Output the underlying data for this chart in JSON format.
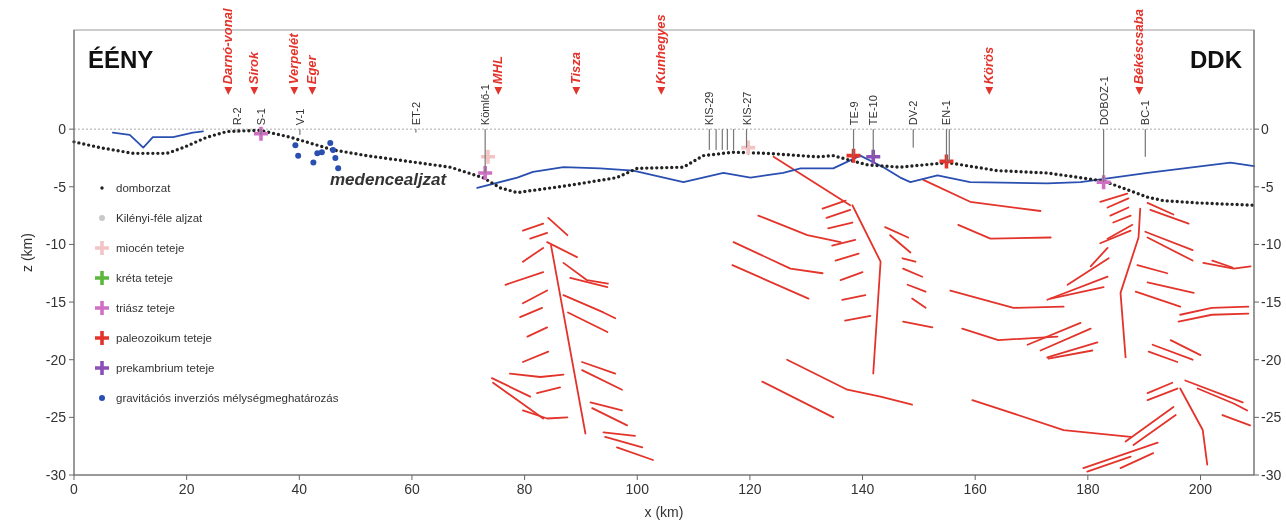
{
  "chart_data": {
    "type": "line",
    "xlabel": "x (km)",
    "ylabel": "z (km)",
    "xlim": [
      0,
      209.5
    ],
    "ylim": [
      -30,
      8.6
    ],
    "xticks": [
      0,
      20,
      40,
      60,
      80,
      100,
      120,
      140,
      160,
      180,
      200
    ],
    "yticks": [
      -30,
      -25,
      -20,
      -15,
      -10,
      -5,
      0
    ],
    "y2lim": [
      -30,
      8.6
    ],
    "y2ticks": [
      -30,
      -25,
      -20,
      -15,
      -10,
      -5,
      0
    ],
    "legend": "left",
    "ref_lines": [
      {
        "axis": "y",
        "value": 0,
        "color": "#aaaaaa",
        "line_style": "dotted"
      }
    ],
    "annotations": [
      "ÉÉNY",
      "DDK",
      "medencealjzat",
      "◄Darnó-vonal",
      "◄Sirok",
      "◄Verpelét",
      "◄Eger",
      "◄MHL",
      "◄Tisza",
      "◄Kunhegyes",
      "◄Körös",
      "◄Békéscsaba"
    ],
    "series": [
      {
        "color": "#e3342b",
        "x": [
          79.7,
          83.3
        ],
        "values": [
          -8.8,
          -8.2
        ]
      },
      {
        "color": "#e3342b",
        "x": [
          84.2,
          87.6
        ],
        "values": [
          -7.7,
          -9.2
        ]
      },
      {
        "color": "#e3342b",
        "x": [
          81.0,
          84.0
        ],
        "values": [
          -9.5,
          -9.0
        ]
      },
      {
        "color": "#e3342b",
        "x": [
          84.0,
          89.3
        ],
        "values": [
          -9.8,
          -11.1
        ]
      },
      {
        "color": "#e3342b",
        "x": [
          79.7,
          83.3
        ],
        "values": [
          -11.5,
          -10.3
        ]
      },
      {
        "color": "#e3342b",
        "x": [
          76.6,
          83.3
        ],
        "values": [
          -13.5,
          -12.4
        ]
      },
      {
        "color": "#e3342b",
        "x": [
          86.9,
          91.1,
          94.8
        ],
        "values": [
          -11.6,
          -13.1,
          -13.4
        ]
      },
      {
        "color": "#e3342b",
        "x": [
          88.1,
          94.7
        ],
        "values": [
          -12.9,
          -13.7
        ]
      },
      {
        "color": "#e3342b",
        "x": [
          79.7,
          84.0
        ],
        "values": [
          -15.1,
          -14.0
        ]
      },
      {
        "color": "#e3342b",
        "x": [
          79.2,
          83.1
        ],
        "values": [
          -16.3,
          -15.5
        ]
      },
      {
        "color": "#e3342b",
        "x": [
          86.9,
          94.0,
          96.1
        ],
        "values": [
          -14.4,
          -15.9,
          -16.4
        ]
      },
      {
        "color": "#e3342b",
        "x": [
          87.7,
          94.7
        ],
        "values": [
          -15.9,
          -17.6
        ]
      },
      {
        "color": "#e3342b",
        "x": [
          80.5,
          84.0
        ],
        "values": [
          -18.0,
          -17.2
        ]
      },
      {
        "color": "#e3342b",
        "x": [
          79.7,
          84.2
        ],
        "values": [
          -20.2,
          -19.3
        ]
      },
      {
        "color": "#e3342b",
        "x": [
          77.4,
          82.8,
          86.9
        ],
        "values": [
          -21.2,
          -21.5,
          -21.3
        ]
      },
      {
        "color": "#e3342b",
        "x": [
          74.2,
          81.0
        ],
        "values": [
          -21.6,
          -23.2
        ]
      },
      {
        "color": "#e3342b",
        "x": [
          74.4,
          83.3
        ],
        "values": [
          -22.0,
          -25.1
        ]
      },
      {
        "color": "#e3342b",
        "x": [
          79.7,
          84.0,
          87.6
        ],
        "values": [
          -24.4,
          -25.1,
          -25.0
        ]
      },
      {
        "color": "#e3342b",
        "x": [
          82.2,
          86.3
        ],
        "values": [
          -22.9,
          -22.4
        ]
      },
      {
        "color": "#e3342b",
        "x": [
          90.2,
          96.1
        ],
        "values": [
          -20.2,
          -21.2
        ]
      },
      {
        "color": "#e3342b",
        "x": [
          90.2,
          97.3
        ],
        "values": [
          -20.9,
          -22.6
        ]
      },
      {
        "color": "#e3342b",
        "x": [
          91.7,
          97.3
        ],
        "values": [
          -23.7,
          -24.4
        ]
      },
      {
        "color": "#e3342b",
        "x": [
          92.0,
          98.2
        ],
        "values": [
          -24.2,
          -25.7
        ]
      },
      {
        "color": "#e3342b",
        "x": [
          94.0,
          99.6
        ],
        "values": [
          -26.3,
          -26.6
        ]
      },
      {
        "color": "#e3342b",
        "x": [
          94.3,
          100.9
        ],
        "values": [
          -26.7,
          -27.6
        ]
      },
      {
        "color": "#e3342b",
        "x": [
          96.4,
          102.8
        ],
        "values": [
          -27.6,
          -28.7
        ]
      },
      {
        "color": "#e3342b",
        "x": [
          84.7,
          90.8
        ],
        "values": [
          -10.1,
          -26.4
        ]
      },
      {
        "color": "#e3342b",
        "x": [
          121.5,
          130.2,
          136.1
        ],
        "values": [
          -7.5,
          -9.2,
          -9.8
        ]
      },
      {
        "color": "#e3342b",
        "x": [
          117.1,
          127.2,
          132.9
        ],
        "values": [
          -9.8,
          -12.1,
          -12.5
        ]
      },
      {
        "color": "#e3342b",
        "x": [
          116.9,
          130.4
        ],
        "values": [
          -11.8,
          -14.7
        ]
      },
      {
        "color": "#e3342b",
        "x": [
          126.6,
          137.3,
          143.2,
          148.8
        ],
        "values": [
          -20.0,
          -22.6,
          -23.2,
          -23.9
        ]
      },
      {
        "color": "#e3342b",
        "x": [
          122.2,
          134.8
        ],
        "values": [
          -21.9,
          -25.0
        ]
      },
      {
        "color": "#e3342b",
        "x": [
          124.2,
          137.8
        ],
        "values": [
          -2.4,
          -6.6
        ]
      },
      {
        "color": "#e3342b",
        "x": [
          138.2,
          143.2,
          141.9
        ],
        "values": [
          -6.6,
          -11.5,
          -21.2
        ]
      },
      {
        "color": "#e3342b",
        "x": [
          132.9,
          137.0
        ],
        "values": [
          -6.9,
          -6.2
        ]
      },
      {
        "color": "#e3342b",
        "x": [
          133.6,
          137.8
        ],
        "values": [
          -7.7,
          -7.0
        ]
      },
      {
        "color": "#e3342b",
        "x": [
          133.9,
          138.2
        ],
        "values": [
          -8.6,
          -8.1
        ]
      },
      {
        "color": "#e3342b",
        "x": [
          134.6,
          138.7
        ],
        "values": [
          -10.1,
          -9.6
        ]
      },
      {
        "color": "#e3342b",
        "x": [
          135.2,
          139.3
        ],
        "values": [
          -11.4,
          -10.8
        ]
      },
      {
        "color": "#e3342b",
        "x": [
          136.1,
          140.0
        ],
        "values": [
          -13.1,
          -12.4
        ]
      },
      {
        "color": "#e3342b",
        "x": [
          136.4,
          140.5
        ],
        "values": [
          -14.8,
          -14.4
        ]
      },
      {
        "color": "#e3342b",
        "x": [
          136.9,
          141.4
        ],
        "values": [
          -16.6,
          -16.2
        ]
      },
      {
        "color": "#e3342b",
        "x": [
          144.0,
          148.1
        ],
        "values": [
          -8.5,
          -9.4
        ]
      },
      {
        "color": "#e3342b",
        "x": [
          144.9,
          148.5
        ],
        "values": [
          -9.2,
          -10.7
        ]
      },
      {
        "color": "#e3342b",
        "x": [
          147.1,
          149.4
        ],
        "values": [
          -11.2,
          -11.5
        ]
      },
      {
        "color": "#e3342b",
        "x": [
          147.2,
          150.6
        ],
        "values": [
          -12.1,
          -12.8
        ]
      },
      {
        "color": "#e3342b",
        "x": [
          148.0,
          151.2
        ],
        "values": [
          -13.5,
          -14.1
        ]
      },
      {
        "color": "#e3342b",
        "x": [
          148.8,
          151.2
        ],
        "values": [
          -14.7,
          -15.5
        ]
      },
      {
        "color": "#e3342b",
        "x": [
          147.2,
          152.4
        ],
        "values": [
          -16.7,
          -17.2
        ]
      },
      {
        "color": "#e3342b",
        "x": [
          150.8,
          159.1,
          171.6
        ],
        "values": [
          -4.4,
          -6.3,
          -7.1
        ]
      },
      {
        "color": "#e3342b",
        "x": [
          157.0,
          162.7,
          173.4
        ],
        "values": [
          -8.3,
          -9.5,
          -9.4
        ]
      },
      {
        "color": "#e3342b",
        "x": [
          155.6,
          166.8,
          175.7
        ],
        "values": [
          -14.0,
          -15.5,
          -15.4
        ]
      },
      {
        "color": "#e3342b",
        "x": [
          157.7,
          164.1,
          174.6
        ],
        "values": [
          -17.3,
          -18.3,
          -18.0
        ]
      },
      {
        "color": "#e3342b",
        "x": [
          159.5,
          175.7,
          187.6
        ],
        "values": [
          -23.5,
          -26.1,
          -26.7
        ]
      },
      {
        "color": "#e3342b",
        "x": [
          169.3,
          178.7
        ],
        "values": [
          -18.7,
          -16.8
        ]
      },
      {
        "color": "#e3342b",
        "x": [
          171.6,
          180.5
        ],
        "values": [
          -19.2,
          -17.3
        ]
      },
      {
        "color": "#e3342b",
        "x": [
          172.8,
          181.7
        ],
        "values": [
          -19.8,
          -18.5
        ]
      },
      {
        "color": "#e3342b",
        "x": [
          173.0,
          180.8
        ],
        "values": [
          -19.9,
          -19.2
        ]
      },
      {
        "color": "#e3342b",
        "x": [
          172.8,
          183.5
        ],
        "values": [
          -14.8,
          -12.8
        ]
      },
      {
        "color": "#e3342b",
        "x": [
          173.4,
          182.8
        ],
        "values": [
          -14.7,
          -13.7
        ]
      },
      {
        "color": "#e3342b",
        "x": [
          176.4,
          183.7
        ],
        "values": [
          -13.5,
          -11.2
        ]
      },
      {
        "color": "#e3342b",
        "x": [
          180.5,
          183.5
        ],
        "values": [
          -11.9,
          -10.3
        ]
      },
      {
        "color": "#e3342b",
        "x": [
          182.2,
          187.0
        ],
        "values": [
          -6.3,
          -5.6
        ]
      },
      {
        "color": "#e3342b",
        "x": [
          183.5,
          187.2
        ],
        "values": [
          -6.8,
          -6.0
        ]
      },
      {
        "color": "#e3342b",
        "x": [
          184.0,
          187.2
        ],
        "values": [
          -7.5,
          -6.8
        ]
      },
      {
        "color": "#e3342b",
        "x": [
          184.5,
          187.6
        ],
        "values": [
          -8.1,
          -7.5
        ]
      },
      {
        "color": "#e3342b",
        "x": [
          182.2,
          187.6
        ],
        "values": [
          -9.9,
          -8.8
        ]
      },
      {
        "color": "#e3342b",
        "x": [
          183.5,
          187.9
        ],
        "values": [
          -9.5,
          -8.3
        ]
      },
      {
        "color": "#e3342b",
        "x": [
          189.3,
          189.0,
          185.8,
          186.7
        ],
        "values": [
          -6.9,
          -9.4,
          -14.2,
          -19.8
        ]
      },
      {
        "color": "#e3342b",
        "x": [
          190.6,
          195.2
        ],
        "values": [
          -6.4,
          -7.4
        ]
      },
      {
        "color": "#e3342b",
        "x": [
          191.1,
          197.9
        ],
        "values": [
          -7.0,
          -8.2
        ]
      },
      {
        "color": "#e3342b",
        "x": [
          190.2,
          198.6
        ],
        "values": [
          -8.9,
          -10.5
        ]
      },
      {
        "color": "#e3342b",
        "x": [
          190.6,
          198.6
        ],
        "values": [
          -9.4,
          -11.4
        ]
      },
      {
        "color": "#e3342b",
        "x": [
          188.8,
          194.1
        ],
        "values": [
          -11.8,
          -12.5
        ]
      },
      {
        "color": "#e3342b",
        "x": [
          190.6,
          198.8
        ],
        "values": [
          -13.3,
          -14.2
        ]
      },
      {
        "color": "#e3342b",
        "x": [
          188.5,
          196.4
        ],
        "values": [
          -14.1,
          -15.4
        ]
      },
      {
        "color": "#e3342b",
        "x": [
          196.4,
          202.0,
          208.5
        ],
        "values": [
          -16.1,
          -15.5,
          -15.4
        ]
      },
      {
        "color": "#e3342b",
        "x": [
          196.1,
          202.0,
          208.5
        ],
        "values": [
          -16.7,
          -16.1,
          -16.0
        ]
      },
      {
        "color": "#e3342b",
        "x": [
          191.5,
          198.6
        ],
        "values": [
          -18.7,
          -20.0
        ]
      },
      {
        "color": "#e3342b",
        "x": [
          190.8,
          195.9
        ],
        "values": [
          -19.3,
          -20.2
        ]
      },
      {
        "color": "#e3342b",
        "x": [
          194.7,
          200.0
        ],
        "values": [
          -18.3,
          -19.6
        ]
      },
      {
        "color": "#e3342b",
        "x": [
          200.5,
          205.9,
          208.9
        ],
        "values": [
          -11.6,
          -12.1,
          -11.9
        ]
      },
      {
        "color": "#e3342b",
        "x": [
          202.1,
          205.7
        ],
        "values": [
          -11.4,
          -12.0
        ]
      },
      {
        "color": "#e3342b",
        "x": [
          196.4,
          200.4,
          201.2
        ],
        "values": [
          -22.5,
          -26.1,
          -29.1
        ]
      },
      {
        "color": "#e3342b",
        "x": [
          190.6,
          195.0
        ],
        "values": [
          -22.9,
          -22.0
        ]
      },
      {
        "color": "#e3342b",
        "x": [
          190.6,
          195.9
        ],
        "values": [
          -23.5,
          -22.5
        ]
      },
      {
        "color": "#e3342b",
        "x": [
          197.3,
          207.5
        ],
        "values": [
          -21.8,
          -23.7
        ]
      },
      {
        "color": "#e3342b",
        "x": [
          199.5,
          205.9,
          208.3
        ],
        "values": [
          -22.5,
          -23.8,
          -24.4
        ]
      },
      {
        "color": "#e3342b",
        "x": [
          203.9,
          208.8
        ],
        "values": [
          -24.8,
          -25.7
        ]
      },
      {
        "color": "#e3342b",
        "x": [
          186.7,
          195.2
        ],
        "values": [
          -27.1,
          -24.1
        ]
      },
      {
        "color": "#e3342b",
        "x": [
          188.1,
          195.6
        ],
        "values": [
          -27.4,
          -24.8
        ]
      },
      {
        "color": "#e3342b",
        "x": [
          179.2,
          192.4
        ],
        "values": [
          -29.4,
          -27.2
        ]
      },
      {
        "color": "#e3342b",
        "x": [
          179.9,
          187.6
        ],
        "values": [
          -29.7,
          -28.4
        ]
      },
      {
        "color": "#e3342b",
        "x": [
          185.8,
          191.6
        ],
        "values": [
          -29.4,
          -28.1
        ]
      },
      {
        "color": "#2a4fb0",
        "x": [
          6.9,
          9.9,
          12.3,
          14.0,
          17.6,
          21.1,
          22.9
        ],
        "values": [
          -0.3,
          -0.5,
          -1.6,
          -0.7,
          -0.7,
          -0.3,
          -0.2
        ]
      },
      {
        "color": "#2a4fb0",
        "x": [
          71.6,
          78.7,
          81.5,
          86.9,
          93.4,
          99.3,
          108.2,
          115.3,
          120.1,
          125.9,
          129.0,
          134.8,
          139.6,
          143.7,
          146.7,
          148.5,
          153.3,
          159.1,
          172.8,
          178.7,
          190.6,
          205.3,
          209.5
        ],
        "values": [
          -5.1,
          -4.2,
          -3.7,
          -3.3,
          -3.4,
          -3.6,
          -4.6,
          -3.8,
          -4.2,
          -3.8,
          -3.4,
          -3.4,
          -2.3,
          -3.3,
          -4.2,
          -4.6,
          -4.0,
          -4.6,
          -4.7,
          -4.6,
          -3.8,
          -2.9,
          -3.2
        ]
      },
      {
        "name": "domborzat",
        "line_style": "dotted",
        "color": "#222222",
        "x": [
          0,
          4.6,
          10.5,
          16.5,
          19.4,
          23.6,
          27.2,
          33.0,
          38.4,
          46.0,
          52.0,
          66.8,
          72.6,
          75.7,
          78.7,
          87.6,
          96.4,
          100.0,
          108.2,
          111.7,
          117.0,
          123.1,
          132.0,
          134.8,
          137.8,
          140.9,
          146.7,
          155.1,
          163.9,
          172.8,
          182.8,
          190.6,
          193.4,
          199.5,
          209.5
        ],
        "values": [
          -1.1,
          -1.6,
          -2.1,
          -2.1,
          -1.6,
          -0.7,
          -0.2,
          -0.1,
          -0.7,
          -1.8,
          -2.3,
          -3.3,
          -4.2,
          -5.1,
          -5.5,
          -4.9,
          -4.2,
          -3.4,
          -3.3,
          -2.3,
          -2.0,
          -2.1,
          -2.4,
          -2.3,
          -2.7,
          -3.1,
          -3.3,
          -2.9,
          -3.6,
          -3.8,
          -4.5,
          -5.9,
          -6.2,
          -6.4,
          -6.6
        ]
      },
      {
        "name": "Kilényi-féle aljzat",
        "type": "scatter",
        "marker": "circle",
        "color": "#c8c8c8"
      },
      {
        "name": "miocén teteje",
        "type": "scatter",
        "marker": "cross",
        "color": "#f2c4c4",
        "x": [
          73.5,
          119.7
        ],
        "values": [
          -2.4,
          -1.6
        ]
      },
      {
        "name": "kréta teteje",
        "type": "scatter",
        "marker": "cross",
        "color": "#5cb83a"
      },
      {
        "name": "triász teteje",
        "type": "scatter",
        "marker": "cross",
        "color": "#d070c4",
        "x": [
          33.2,
          73.0,
          182.8
        ],
        "values": [
          -0.4,
          -3.8,
          -4.6
        ]
      },
      {
        "name": "paleozoikum teteje",
        "type": "scatter",
        "marker": "cross",
        "color": "#e3342b",
        "x": [
          138.4,
          154.9
        ],
        "values": [
          -2.3,
          -2.8
        ]
      },
      {
        "name": "prekambrium teteje",
        "type": "scatter",
        "marker": "cross",
        "color": "#8a50b8",
        "x": [
          141.9
        ],
        "values": [
          -2.4
        ]
      },
      {
        "name": "gravitációs inverziós mélységmeghatározás",
        "type": "scatter",
        "marker": "circle",
        "color": "#2a4fb0",
        "x": [
          39.3,
          39.8,
          42.5,
          43.2,
          44.0,
          45.5,
          46.0,
          46.4,
          46.9
        ],
        "values": [
          -1.4,
          -2.3,
          -2.9,
          -2.1,
          -2.0,
          -1.2,
          -1.8,
          -2.5,
          -3.4
        ]
      },
      {
        "type": "bar",
        "color": "#777777",
        "x": [
          29.0,
          33.2,
          40.1,
          60.7,
          73.0,
          112.8,
          114.0,
          115.1,
          116.0,
          117.1,
          119.4,
          138.4,
          141.9,
          149.0,
          154.9,
          155.4,
          182.8,
          190.2
        ],
        "values": [
          -0.3,
          -0.5,
          -0.5,
          -0.3,
          -3.8,
          -1.8,
          -1.8,
          -1.8,
          -1.8,
          -1.8,
          -1.6,
          -2.3,
          -2.4,
          -1.6,
          -2.8,
          -2.8,
          -4.6,
          -2.4
        ],
        "value_labels": [
          "R-2",
          "S-1",
          "V-1",
          "ET-2",
          "Kömlő-1",
          "KIS-29",
          null,
          null,
          null,
          null,
          "KIS-27",
          "TE-9",
          "TE-10",
          "DV-2",
          "EN-1",
          null,
          "DOBOZ-1",
          "BC-1"
        ]
      }
    ]
  }
}
